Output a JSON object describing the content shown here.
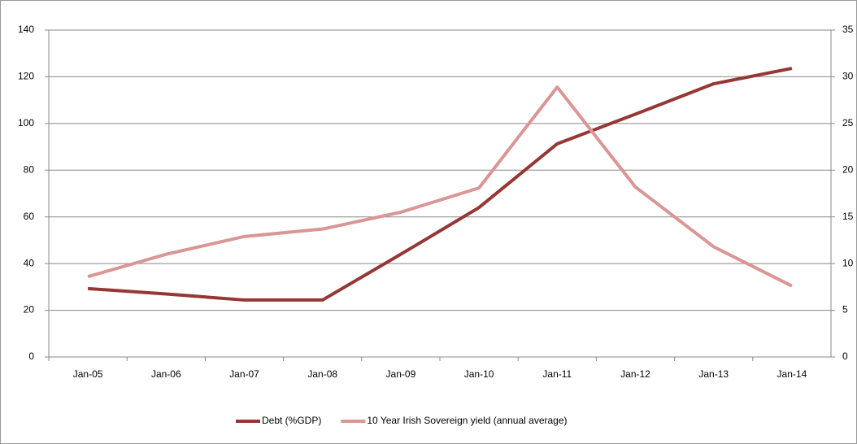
{
  "chart_data": {
    "type": "line",
    "categories": [
      "Jan-05",
      "Jan-06",
      "Jan-07",
      "Jan-08",
      "Jan-09",
      "Jan-10",
      "Jan-11",
      "Jan-12",
      "Jan-13",
      "Jan-14"
    ],
    "series": [
      {
        "name": "Debt (%GDP)",
        "color": "#953735",
        "values": [
          29.3,
          27,
          24.4,
          24.4,
          44,
          64,
          91.3,
          104,
          117,
          123.6
        ]
      },
      {
        "name": "10 Year Irish Sovereign yield (annual average)",
        "color": "#d99694",
        "axis": "y2",
        "values": [
          8.6,
          11,
          12.9,
          13.7,
          15.5,
          18.1,
          28.9,
          18.2,
          11.8,
          7.6
        ]
      }
    ],
    "ylim": [
      0,
      140
    ],
    "yticks": [
      0,
      20,
      40,
      60,
      80,
      100,
      120,
      140
    ],
    "y2lim": [
      0,
      35
    ],
    "y2ticks": [
      0,
      5,
      10,
      15,
      20,
      25,
      30,
      35
    ],
    "grid": true,
    "legend": "bottom"
  }
}
